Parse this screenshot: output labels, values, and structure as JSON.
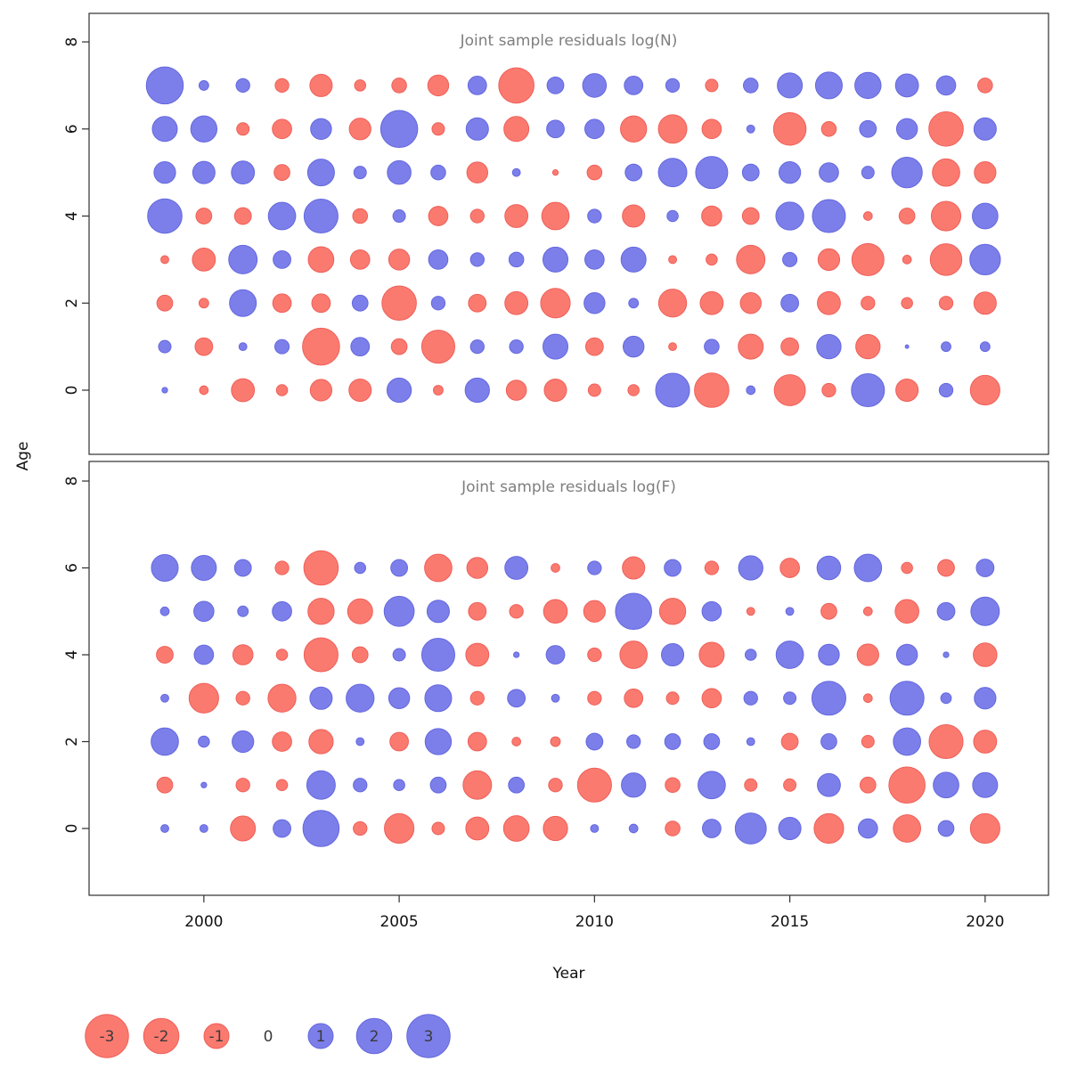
{
  "figure": {
    "xlabel": "Year",
    "ylabel": "Age",
    "background": "#ffffff"
  },
  "colors": {
    "negative_fill": "#FB7A70",
    "negative_stroke": "#EE6059",
    "positive_fill": "#7C7FEA",
    "positive_stroke": "#6468DE",
    "title_gray": "#7E7E7E",
    "axis_color": "#2F2F2F",
    "tick_label_color": "#111111",
    "legend_text_color": "#3A3A3A"
  },
  "axes": {
    "x_ticks": [
      2000,
      2005,
      2010,
      2015,
      2020
    ],
    "y_ticks": [
      0,
      2,
      4,
      6,
      8
    ]
  },
  "legend": {
    "values": [
      -3,
      -2,
      -1,
      0,
      1,
      2,
      3
    ]
  },
  "chart_data": [
    {
      "type": "bubble",
      "panel": "top",
      "title": "Joint sample residuals log(N)",
      "xlabel": "Year",
      "ylabel": "Age",
      "ylim": [
        0,
        8
      ],
      "years": [
        1999,
        2000,
        2001,
        2002,
        2003,
        2004,
        2005,
        2006,
        2007,
        2008,
        2009,
        2010,
        2011,
        2012,
        2013,
        2014,
        2015,
        2016,
        2017,
        2018,
        2019,
        2020
      ],
      "series": [
        {
          "age": 7,
          "values": [
            2.2,
            0.15,
            0.3,
            -0.3,
            -0.8,
            -0.2,
            -0.35,
            -0.7,
            0.55,
            -2.0,
            0.45,
            0.9,
            0.55,
            0.3,
            -0.25,
            0.35,
            1.0,
            1.15,
            1.1,
            0.85,
            0.6,
            -0.35
          ]
        },
        {
          "age": 6,
          "values": [
            1.0,
            1.1,
            -0.25,
            -0.6,
            0.7,
            -0.75,
            2.2,
            -0.25,
            0.8,
            -1.0,
            0.5,
            0.6,
            -1.1,
            -1.3,
            -0.6,
            0.1,
            -1.7,
            -0.35,
            0.45,
            0.7,
            -1.9,
            0.8
          ]
        },
        {
          "age": 5,
          "values": [
            0.75,
            0.8,
            0.85,
            -0.4,
            1.15,
            0.25,
            0.9,
            0.35,
            -0.7,
            0.1,
            -0.05,
            -0.35,
            0.45,
            1.3,
            1.65,
            0.45,
            0.75,
            0.6,
            0.25,
            1.5,
            -1.2,
            -0.75
          ]
        },
        {
          "age": 4,
          "values": [
            1.9,
            -0.4,
            -0.45,
            1.2,
            1.85,
            -0.35,
            0.25,
            -0.6,
            -0.3,
            -0.85,
            -1.2,
            0.3,
            -0.8,
            0.2,
            -0.65,
            -0.45,
            1.25,
            1.75,
            -0.12,
            -0.4,
            -1.4,
            1.05
          ]
        },
        {
          "age": 3,
          "values": [
            -0.1,
            -0.85,
            1.3,
            0.5,
            -1.05,
            -0.6,
            -0.7,
            0.6,
            0.3,
            0.35,
            1.0,
            0.6,
            1.0,
            -0.1,
            -0.2,
            -1.3,
            0.33,
            -0.75,
            -1.65,
            -0.12,
            -1.6,
            1.5
          ]
        },
        {
          "age": 2,
          "values": [
            -0.4,
            -0.15,
            1.15,
            -0.55,
            -0.55,
            0.4,
            -1.9,
            0.3,
            -0.5,
            -0.85,
            -1.4,
            0.7,
            0.15,
            -1.25,
            -0.85,
            -0.7,
            0.5,
            -0.85,
            -0.3,
            -0.2,
            -0.3,
            -0.8
          ]
        },
        {
          "age": 1,
          "values": [
            0.25,
            -0.5,
            0.1,
            0.33,
            -2.2,
            0.55,
            -0.4,
            -1.75,
            0.3,
            0.3,
            1.0,
            -0.5,
            0.7,
            -0.1,
            0.35,
            -1.0,
            -0.5,
            0.95,
            -0.95,
            0.02,
            0.15,
            0.15
          ]
        },
        {
          "age": 0,
          "values": [
            0.05,
            -0.12,
            -0.85,
            -0.2,
            -0.75,
            -0.8,
            0.95,
            -0.15,
            0.95,
            -0.65,
            -0.8,
            -0.25,
            -0.2,
            1.85,
            -1.9,
            0.12,
            -1.55,
            -0.3,
            1.75,
            -0.8,
            0.3,
            -1.4
          ]
        }
      ]
    },
    {
      "type": "bubble",
      "panel": "bottom",
      "title": "Joint sample residuals log(F)",
      "xlabel": "Year",
      "ylabel": "Age",
      "ylim": [
        0,
        8
      ],
      "years": [
        1999,
        2000,
        2001,
        2002,
        2003,
        2004,
        2005,
        2006,
        2007,
        2008,
        2009,
        2010,
        2011,
        2012,
        2013,
        2014,
        2015,
        2016,
        2017,
        2018,
        2019,
        2020
      ],
      "series": [
        {
          "age": 6,
          "values": [
            1.15,
            1.0,
            0.45,
            -0.3,
            -1.9,
            0.2,
            0.45,
            -1.2,
            -0.7,
            0.85,
            -0.12,
            0.3,
            -0.8,
            0.45,
            -0.3,
            0.95,
            -0.6,
            0.9,
            1.2,
            -0.2,
            -0.45,
            0.5
          ]
        },
        {
          "age": 5,
          "values": [
            0.12,
            0.65,
            0.18,
            0.6,
            -1.1,
            -1.0,
            1.45,
            0.8,
            -0.5,
            -0.3,
            -0.9,
            -0.75,
            2.1,
            -1.1,
            0.6,
            -0.1,
            0.1,
            -0.4,
            -0.12,
            -0.9,
            0.5,
            1.3
          ]
        },
        {
          "age": 4,
          "values": [
            -0.45,
            0.6,
            -0.65,
            -0.2,
            -1.85,
            -0.4,
            0.25,
            1.75,
            -0.85,
            0.05,
            0.55,
            -0.3,
            -1.2,
            0.8,
            -1.0,
            0.2,
            1.2,
            0.7,
            -0.75,
            0.7,
            0.05,
            -0.9
          ]
        },
        {
          "age": 3,
          "values": [
            0.1,
            -1.4,
            -0.3,
            -1.25,
            0.8,
            1.25,
            0.7,
            1.15,
            -0.3,
            0.5,
            0.1,
            -0.3,
            -0.55,
            -0.25,
            -0.6,
            0.3,
            0.25,
            1.85,
            -0.12,
            1.85,
            0.18,
            0.75
          ]
        },
        {
          "age": 2,
          "values": [
            1.2,
            0.2,
            0.75,
            -0.6,
            -0.95,
            0.1,
            -0.55,
            1.1,
            -0.55,
            -0.12,
            -0.15,
            0.45,
            0.3,
            0.4,
            0.4,
            0.1,
            -0.45,
            0.4,
            -0.25,
            1.2,
            -1.85,
            -0.85
          ]
        },
        {
          "age": 1,
          "values": [
            -0.4,
            0.05,
            -0.3,
            -0.2,
            1.3,
            0.3,
            0.2,
            0.4,
            -1.3,
            0.4,
            -0.3,
            -1.85,
            0.95,
            -0.35,
            1.2,
            -0.25,
            -0.25,
            0.85,
            -0.4,
            -2.1,
            1.05,
            1.0
          ]
        },
        {
          "age": 0,
          "values": [
            0.1,
            0.1,
            -1.0,
            0.5,
            2.1,
            -0.3,
            -1.4,
            -0.25,
            -0.85,
            -1.05,
            -0.95,
            0.1,
            0.12,
            -0.35,
            0.55,
            1.55,
            0.8,
            -1.4,
            0.6,
            -1.2,
            0.4,
            -1.4
          ]
        }
      ]
    }
  ]
}
